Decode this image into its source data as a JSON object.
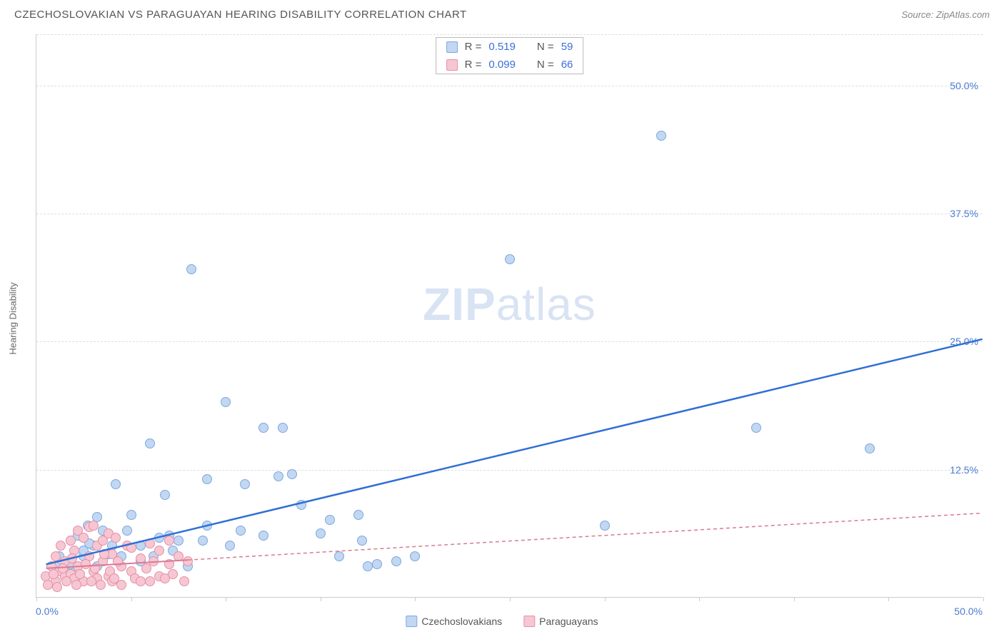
{
  "title": "CZECHOSLOVAKIAN VS PARAGUAYAN HEARING DISABILITY CORRELATION CHART",
  "source": "Source: ZipAtlas.com",
  "ylabel": "Hearing Disability",
  "watermark_a": "ZIP",
  "watermark_b": "atlas",
  "chart": {
    "type": "scatter",
    "xlim": [
      0,
      50
    ],
    "ylim": [
      0,
      55
    ],
    "y_ticks": [
      12.5,
      25.0,
      37.5,
      50.0
    ],
    "y_tick_labels": [
      "12.5%",
      "25.0%",
      "37.5%",
      "50.0%"
    ],
    "x_marks": [
      0,
      5,
      10,
      15,
      20,
      25,
      30,
      35,
      40,
      45,
      50
    ],
    "origin_x": "0.0%",
    "origin_xr": "50.0%",
    "background_color": "#ffffff",
    "grid_color": "#dddddd",
    "series": [
      {
        "name": "Czechoslovakians",
        "fill": "#c2d7f2",
        "stroke": "#7da7df",
        "trend_color": "#2f6fd6",
        "trend_dashed": false,
        "trend": {
          "x1": 0.5,
          "y1": 3.2,
          "x2": 50,
          "y2": 25.2
        },
        "points": [
          [
            1,
            3
          ],
          [
            1.2,
            4
          ],
          [
            1.5,
            2.5
          ],
          [
            1.8,
            5.5
          ],
          [
            2,
            3
          ],
          [
            2.2,
            6
          ],
          [
            2.5,
            4
          ],
          [
            2.7,
            7
          ],
          [
            3,
            5
          ],
          [
            3.2,
            3
          ],
          [
            3.5,
            6.5
          ],
          [
            4,
            5
          ],
          [
            4.2,
            11
          ],
          [
            4.5,
            4
          ],
          [
            5,
            8
          ],
          [
            5.5,
            5
          ],
          [
            6,
            15
          ],
          [
            6.2,
            4
          ],
          [
            6.8,
            10
          ],
          [
            7,
            6
          ],
          [
            7.5,
            5.5
          ],
          [
            8,
            3
          ],
          [
            8.2,
            32
          ],
          [
            9,
            11.5
          ],
          [
            9,
            7
          ],
          [
            10,
            19
          ],
          [
            10.2,
            5
          ],
          [
            11,
            11
          ],
          [
            12,
            6
          ],
          [
            12,
            16.5
          ],
          [
            12.8,
            11.8
          ],
          [
            13,
            16.5
          ],
          [
            13.5,
            12
          ],
          [
            14,
            9
          ],
          [
            15,
            6.2
          ],
          [
            15.5,
            7.5
          ],
          [
            16,
            4
          ],
          [
            17,
            8
          ],
          [
            17.2,
            5.5
          ],
          [
            17.5,
            3
          ],
          [
            18,
            3.2
          ],
          [
            19,
            3.5
          ],
          [
            20,
            4
          ],
          [
            25,
            33
          ],
          [
            30,
            7
          ],
          [
            33,
            45
          ],
          [
            38,
            16.5
          ],
          [
            44,
            14.5
          ],
          [
            2.5,
            4.5
          ],
          [
            3.8,
            4.2
          ],
          [
            4.8,
            6.5
          ],
          [
            5.5,
            3.5
          ],
          [
            1.8,
            3.2
          ],
          [
            2.8,
            5.2
          ],
          [
            3.2,
            7.8
          ],
          [
            6.5,
            5.8
          ],
          [
            7.2,
            4.5
          ],
          [
            8.8,
            5.5
          ],
          [
            10.8,
            6.5
          ]
        ]
      },
      {
        "name": "Paraguayans",
        "fill": "#f6c7d2",
        "stroke": "#e58fa6",
        "trend_color": "#d97a93",
        "trend_dashed": true,
        "trend_solid_until": 8,
        "trend": {
          "x1": 0.5,
          "y1": 2.8,
          "x2": 50,
          "y2": 8.2
        },
        "points": [
          [
            0.5,
            2
          ],
          [
            0.8,
            3
          ],
          [
            1,
            1.5
          ],
          [
            1,
            4
          ],
          [
            1.2,
            2.5
          ],
          [
            1.3,
            5
          ],
          [
            1.5,
            2
          ],
          [
            1.5,
            3.5
          ],
          [
            1.8,
            5.5
          ],
          [
            1.8,
            2.2
          ],
          [
            2,
            4.5
          ],
          [
            2,
            1.8
          ],
          [
            2.2,
            6.5
          ],
          [
            2.2,
            3
          ],
          [
            2.5,
            5.8
          ],
          [
            2.5,
            1.5
          ],
          [
            2.8,
            4
          ],
          [
            2.8,
            6.8
          ],
          [
            3,
            2.5
          ],
          [
            3,
            7
          ],
          [
            3.2,
            5
          ],
          [
            3.2,
            1.8
          ],
          [
            3.5,
            3.5
          ],
          [
            3.5,
            5.5
          ],
          [
            3.8,
            2
          ],
          [
            3.8,
            6.2
          ],
          [
            4,
            4.2
          ],
          [
            4,
            1.5
          ],
          [
            4.2,
            5.8
          ],
          [
            4.5,
            3
          ],
          [
            4.5,
            1.2
          ],
          [
            4.8,
            5
          ],
          [
            5,
            2.5
          ],
          [
            5,
            4.8
          ],
          [
            5.2,
            1.8
          ],
          [
            5.5,
            3.8
          ],
          [
            5.5,
            1.5
          ],
          [
            5.8,
            2.8
          ],
          [
            6,
            5.2
          ],
          [
            6,
            1.5
          ],
          [
            6.2,
            3.5
          ],
          [
            6.5,
            2
          ],
          [
            6.5,
            4.5
          ],
          [
            6.8,
            1.8
          ],
          [
            7,
            3.2
          ],
          [
            7,
            5.5
          ],
          [
            7.2,
            2.2
          ],
          [
            7.5,
            4
          ],
          [
            7.8,
            1.5
          ],
          [
            8,
            3.5
          ],
          [
            0.6,
            1.2
          ],
          [
            0.9,
            2.2
          ],
          [
            1.1,
            1
          ],
          [
            1.4,
            2.8
          ],
          [
            1.6,
            1.5
          ],
          [
            1.9,
            3.8
          ],
          [
            2.1,
            1.2
          ],
          [
            2.3,
            2.2
          ],
          [
            2.6,
            3.2
          ],
          [
            2.9,
            1.5
          ],
          [
            3.1,
            2.8
          ],
          [
            3.4,
            1.2
          ],
          [
            3.6,
            4.2
          ],
          [
            3.9,
            2.5
          ],
          [
            4.1,
            1.8
          ],
          [
            4.3,
            3.5
          ]
        ]
      }
    ]
  },
  "legend_top": [
    {
      "swatch_fill": "#c2d7f2",
      "swatch_stroke": "#7da7df",
      "r_label": "R = ",
      "r": "0.519",
      "n_label": "N = ",
      "n": "59"
    },
    {
      "swatch_fill": "#f6c7d2",
      "swatch_stroke": "#e58fa6",
      "r_label": "R = ",
      "r": "0.099",
      "n_label": "N = ",
      "n": "66"
    }
  ],
  "legend_bottom": [
    {
      "swatch_fill": "#c2d7f2",
      "swatch_stroke": "#7da7df",
      "label": "Czechoslovakians"
    },
    {
      "swatch_fill": "#f6c7d2",
      "swatch_stroke": "#e58fa6",
      "label": "Paraguayans"
    }
  ]
}
